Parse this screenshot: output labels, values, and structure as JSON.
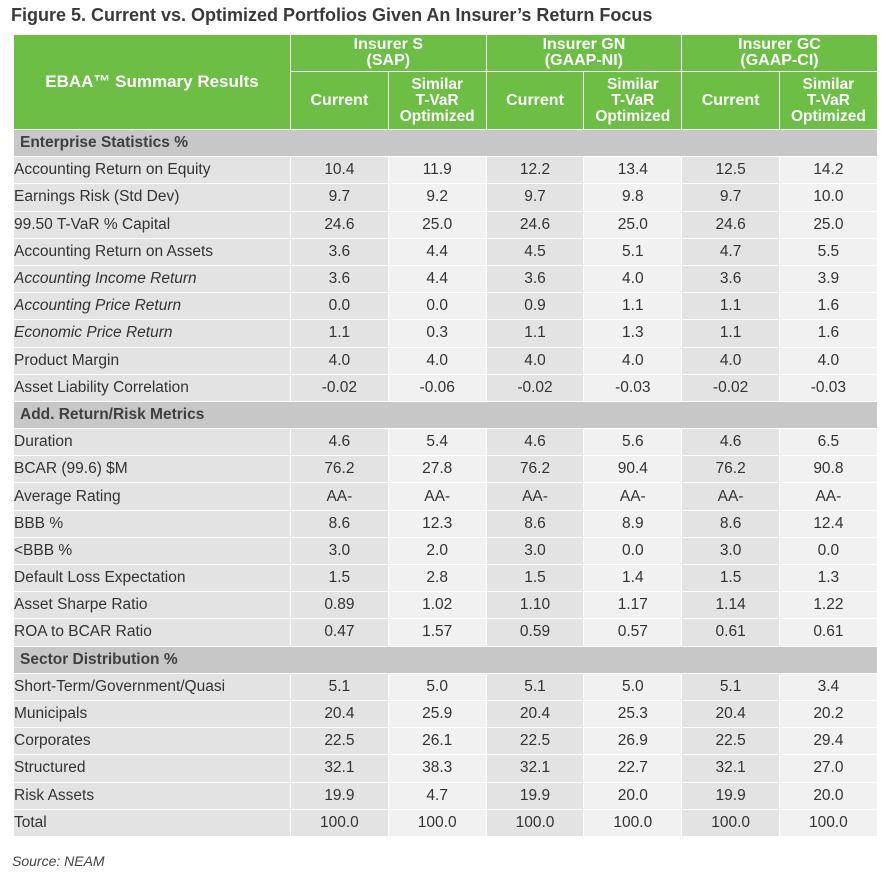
{
  "figure_title": "Figure 5. Current vs. Optimized Portfolios Given An Insurer’s Return Focus",
  "header": {
    "corner_label": "EBAA™ Summary Results",
    "insurers": [
      {
        "name": "Insurer S",
        "basis": "(SAP)"
      },
      {
        "name": "Insurer GN",
        "basis": "(GAAP-NI)"
      },
      {
        "name": "Insurer GC",
        "basis": "(GAAP-CI)"
      }
    ],
    "current_label": "Current",
    "optimized_label": [
      "Similar",
      "T-VaR",
      "Optimized"
    ]
  },
  "sections": [
    {
      "title": "Enterprise Statistics %",
      "rows": [
        {
          "label": "Accounting Return on Equity",
          "italic": false,
          "values": [
            "10.4",
            "11.9",
            "12.2",
            "13.4",
            "12.5",
            "14.2"
          ]
        },
        {
          "label": "Earnings Risk (Std Dev)",
          "italic": false,
          "values": [
            "9.7",
            "9.2",
            "9.7",
            "9.8",
            "9.7",
            "10.0"
          ]
        },
        {
          "label": "99.50 T-VaR % Capital",
          "italic": false,
          "values": [
            "24.6",
            "25.0",
            "24.6",
            "25.0",
            "24.6",
            "25.0"
          ]
        },
        {
          "label": "Accounting Return on Assets",
          "italic": false,
          "values": [
            "3.6",
            "4.4",
            "4.5",
            "5.1",
            "4.7",
            "5.5"
          ]
        },
        {
          "label": "Accounting Income Return",
          "italic": true,
          "values": [
            "3.6",
            "4.4",
            "3.6",
            "4.0",
            "3.6",
            "3.9"
          ]
        },
        {
          "label": "Accounting Price Return",
          "italic": true,
          "values": [
            "0.0",
            "0.0",
            "0.9",
            "1.1",
            "1.1",
            "1.6"
          ]
        },
        {
          "label": "Economic Price Return",
          "italic": true,
          "values": [
            "1.1",
            "0.3",
            "1.1",
            "1.3",
            "1.1",
            "1.6"
          ]
        },
        {
          "label": "Product Margin",
          "italic": false,
          "values": [
            "4.0",
            "4.0",
            "4.0",
            "4.0",
            "4.0",
            "4.0"
          ]
        },
        {
          "label": "Asset Liability Correlation",
          "italic": false,
          "values": [
            "-0.02",
            "-0.06",
            "-0.02",
            "-0.03",
            "-0.02",
            "-0.03"
          ]
        }
      ]
    },
    {
      "title": "Add. Return/Risk Metrics",
      "rows": [
        {
          "label": "Duration",
          "italic": false,
          "values": [
            "4.6",
            "5.4",
            "4.6",
            "5.6",
            "4.6",
            "6.5"
          ]
        },
        {
          "label": "BCAR (99.6) $M",
          "italic": false,
          "values": [
            "76.2",
            "27.8",
            "76.2",
            "90.4",
            "76.2",
            "90.8"
          ]
        },
        {
          "label": "Average Rating",
          "italic": false,
          "values": [
            "AA-",
            "AA-",
            "AA-",
            "AA-",
            "AA-",
            "AA-"
          ]
        },
        {
          "label": "BBB %",
          "italic": false,
          "values": [
            "8.6",
            "12.3",
            "8.6",
            "8.9",
            "8.6",
            "12.4"
          ]
        },
        {
          "label": "<BBB %",
          "italic": false,
          "values": [
            "3.0",
            "2.0",
            "3.0",
            "0.0",
            "3.0",
            "0.0"
          ]
        },
        {
          "label": "Default Loss Expectation",
          "italic": false,
          "values": [
            "1.5",
            "2.8",
            "1.5",
            "1.4",
            "1.5",
            "1.3"
          ]
        },
        {
          "label": "Asset Sharpe Ratio",
          "italic": false,
          "values": [
            "0.89",
            "1.02",
            "1.10",
            "1.17",
            "1.14",
            "1.22"
          ]
        },
        {
          "label": "ROA to BCAR Ratio",
          "italic": false,
          "values": [
            "0.47",
            "1.57",
            "0.59",
            "0.57",
            "0.61",
            "0.61"
          ]
        }
      ]
    },
    {
      "title": "Sector Distribution %",
      "rows": [
        {
          "label": "Short-Term/Government/Quasi",
          "italic": false,
          "values": [
            "5.1",
            "5.0",
            "5.1",
            "5.0",
            "5.1",
            "3.4"
          ]
        },
        {
          "label": "Municipals",
          "italic": false,
          "values": [
            "20.4",
            "25.9",
            "20.4",
            "25.3",
            "20.4",
            "20.2"
          ]
        },
        {
          "label": "Corporates",
          "italic": false,
          "values": [
            "22.5",
            "26.1",
            "22.5",
            "26.9",
            "22.5",
            "29.4"
          ]
        },
        {
          "label": "Structured",
          "italic": false,
          "values": [
            "32.1",
            "38.3",
            "32.1",
            "22.7",
            "32.1",
            "27.0"
          ]
        },
        {
          "label": "Risk Assets",
          "italic": false,
          "values": [
            "19.9",
            "4.7",
            "19.9",
            "20.0",
            "19.9",
            "20.0"
          ]
        },
        {
          "label": "Total",
          "italic": false,
          "values": [
            "100.0",
            "100.0",
            "100.0",
            "100.0",
            "100.0",
            "100.0"
          ]
        }
      ]
    }
  ],
  "source": "Source: NEAM",
  "colors": {
    "header_green": "#6cbe45",
    "section_gray": "#c7c7c7",
    "label_gray": "#e3e3e3",
    "alt_gray": "#f1f1f1"
  }
}
